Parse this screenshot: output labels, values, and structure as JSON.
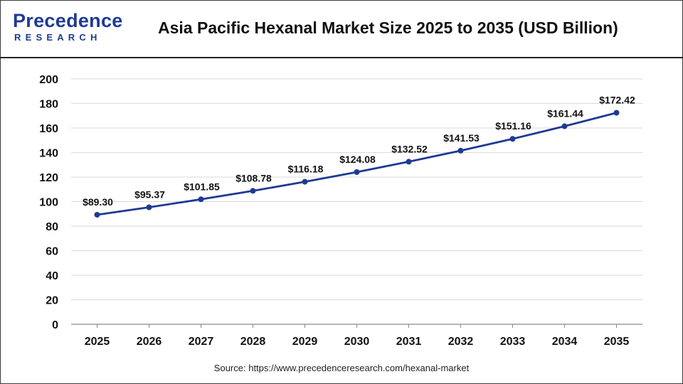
{
  "header": {
    "logo_top": "Precedence",
    "logo_bottom": "RESEARCH",
    "title": "Asia Pacific Hexanal Market Size 2025 to 2035 (USD Billion)"
  },
  "footer": {
    "source": "Source: https://www.precedenceresearch.com/hexanal-market"
  },
  "colors": {
    "line": "#1f3a93",
    "brand": "#1f3a93",
    "grid": "#d9d9d9"
  },
  "chart_data": {
    "type": "line",
    "title": "Asia Pacific Hexanal Market Size 2025 to 2035 (USD Billion)",
    "categories": [
      "2025",
      "2026",
      "2027",
      "2028",
      "2029",
      "2030",
      "2031",
      "2032",
      "2033",
      "2034",
      "2035"
    ],
    "values": [
      89.3,
      95.37,
      101.85,
      108.78,
      116.18,
      124.08,
      132.52,
      141.53,
      151.16,
      161.44,
      172.42
    ],
    "data_labels": [
      "$89.30",
      "$95.37",
      "$101.85",
      "$108.78",
      "$116.18",
      "$124.08",
      "$132.52",
      "$141.53",
      "$151.16",
      "$161.44",
      "$172.42"
    ],
    "ylim": [
      0,
      200
    ],
    "yticks": [
      0,
      20,
      40,
      60,
      80,
      100,
      120,
      140,
      160,
      180,
      200
    ],
    "grid": true,
    "legend": "none",
    "xlabel": "",
    "ylabel": ""
  }
}
